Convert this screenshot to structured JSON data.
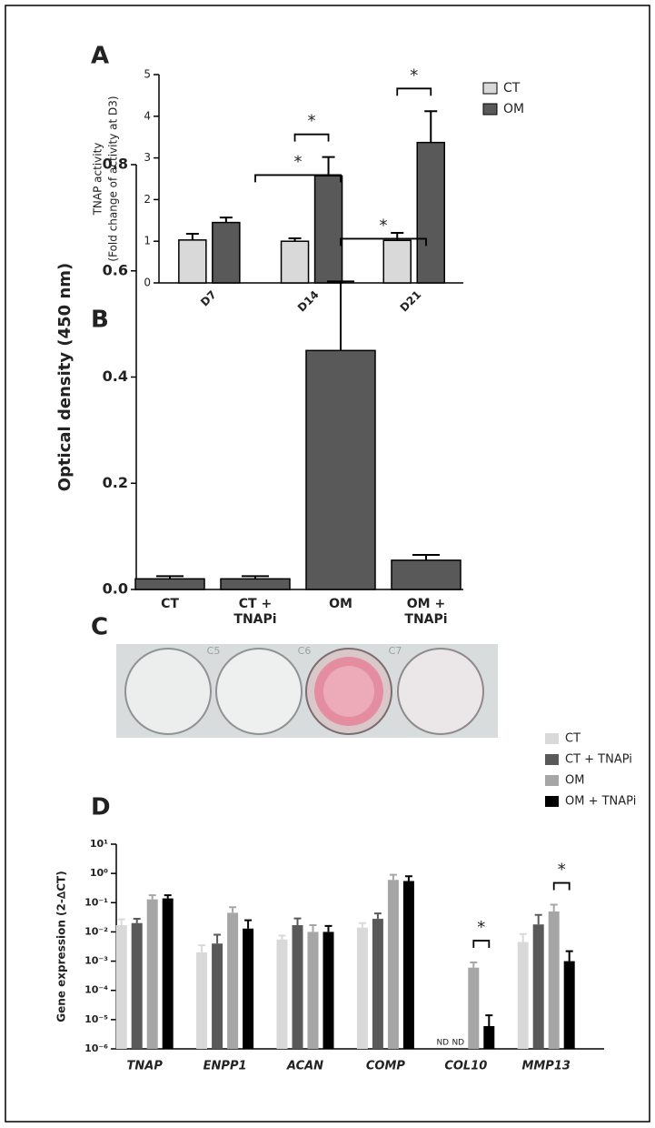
{
  "chart_data": [
    {
      "type": "bar",
      "panel": "A",
      "ylabel": [
        "TNAP activity",
        "(Fold change of activity at D3)"
      ],
      "categories": [
        "D7",
        "D14",
        "D21"
      ],
      "series": [
        {
          "name": "CT",
          "color": "#d9d9d9",
          "values": [
            1.03,
            1.0,
            1.02
          ],
          "errors": [
            0.15,
            0.07,
            0.18
          ]
        },
        {
          "name": "OM",
          "color": "#595959",
          "values": [
            1.45,
            2.57,
            3.37
          ],
          "errors": [
            0.12,
            0.45,
            0.75
          ]
        }
      ],
      "ylim": [
        0,
        5
      ],
      "yticks": [
        0,
        1,
        2,
        3,
        4,
        5
      ],
      "legend": "top-right",
      "significance": [
        {
          "category": "D14",
          "series": [
            "CT",
            "OM"
          ],
          "label": "*"
        },
        {
          "category": "D21",
          "series": [
            "CT",
            "OM"
          ],
          "label": "*"
        }
      ]
    },
    {
      "type": "bar",
      "panel": "B",
      "ylabel": "Optical density (450 nm)",
      "categories": [
        "CT",
        "CT + TNAPi",
        "OM",
        "OM + TNAPi"
      ],
      "values": [
        0.02,
        0.02,
        0.45,
        0.055
      ],
      "errors": [
        0.005,
        0.005,
        0.13,
        0.01
      ],
      "color": "#595959",
      "ylim": [
        0,
        0.8
      ],
      "yticks": [
        {
          "value": 0,
          "label": "0.0"
        },
        0.2,
        0.4,
        0.6,
        0.8
      ],
      "significance": [
        {
          "categories": [
            "CT + TNAPi",
            "OM"
          ],
          "label": "*"
        },
        {
          "categories": [
            "OM",
            "OM + TNAPi"
          ],
          "label": "*"
        }
      ]
    },
    {
      "type": "bar",
      "panel": "D",
      "log_scale": true,
      "ylabel": "Gene expression (2-∆CT)",
      "categories": [
        "TNAP",
        "ENPP1",
        "ACAN",
        "COMP",
        "COL10",
        "MMP13"
      ],
      "series": [
        {
          "name": "CT",
          "color": "#d9d9d9",
          "values": [
            0.017,
            0.002,
            0.0055,
            0.014,
            null,
            0.0045
          ],
          "errors": [
            0.01,
            0.0015,
            0.002,
            0.006,
            null,
            0.004
          ]
        },
        {
          "name": "CT + TNAPi",
          "color": "#595959",
          "values": [
            0.02,
            0.004,
            0.017,
            0.028,
            null,
            0.018
          ],
          "errors": [
            0.008,
            0.004,
            0.012,
            0.015,
            null,
            0.02
          ]
        },
        {
          "name": "OM",
          "color": "#a6a6a6",
          "values": [
            0.13,
            0.045,
            0.01,
            0.6,
            0.0006,
            0.05
          ],
          "errors": [
            0.05,
            0.025,
            0.007,
            0.3,
            0.0003,
            0.035
          ]
        },
        {
          "name": "OM + TNAPi",
          "color": "#000000",
          "values": [
            0.14,
            0.013,
            0.01,
            0.55,
            6e-06,
            0.001
          ],
          "errors": [
            0.04,
            0.012,
            0.006,
            0.25,
            8e-06,
            0.0012
          ]
        }
      ],
      "ylim": [
        1e-06,
        10
      ],
      "yticks": [
        {
          "value": 1e-06,
          "label": "10⁻⁶"
        },
        {
          "value": 1e-05,
          "label": "10⁻⁵"
        },
        {
          "value": 0.0001,
          "label": "10⁻⁴"
        },
        {
          "value": 0.001,
          "label": "10⁻³"
        },
        {
          "value": 0.01,
          "label": "10⁻²"
        },
        {
          "value": 0.1,
          "label": "10⁻¹"
        },
        {
          "value": 1,
          "label": "10⁰"
        },
        {
          "value": 10,
          "label": "10¹"
        }
      ],
      "legend": "top-right",
      "not_detected": [
        {
          "series": "CT",
          "category": "COL10",
          "label": "ND"
        },
        {
          "series": "CT + TNAPi",
          "category": "COL10",
          "label": "ND"
        }
      ],
      "significance": [
        {
          "category": "COL10",
          "series": [
            "OM",
            "OM + TNAPi"
          ],
          "label": "*"
        },
        {
          "category": "MMP13",
          "series": [
            "OM",
            "OM + TNAPi"
          ],
          "label": "*"
        }
      ]
    }
  ],
  "photo": {
    "panel": "C",
    "labels": [
      "C5",
      "C6",
      "C7"
    ]
  }
}
